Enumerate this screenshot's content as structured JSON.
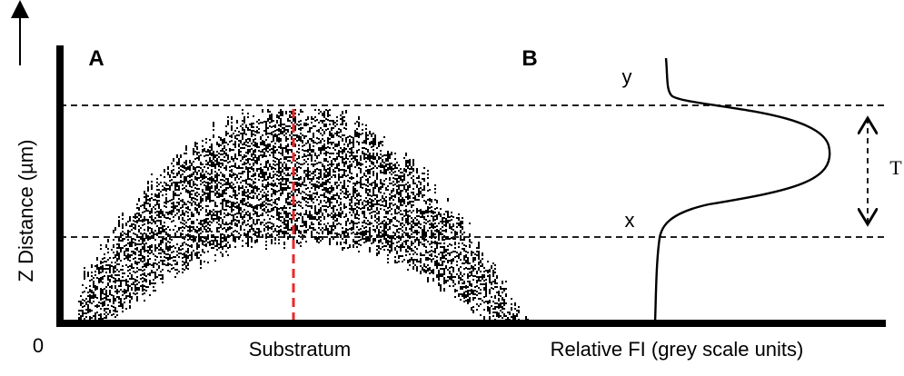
{
  "panel_a": {
    "label": "A",
    "x_axis_label": "Substratum"
  },
  "panel_b": {
    "label": "B",
    "x_axis_label": "Relative FI (grey scale units)",
    "top_marker": "y",
    "bottom_marker": "x",
    "thickness_label": "T"
  },
  "y_axis": {
    "label": "Z Distance (µm)",
    "origin_label": "0"
  }
}
